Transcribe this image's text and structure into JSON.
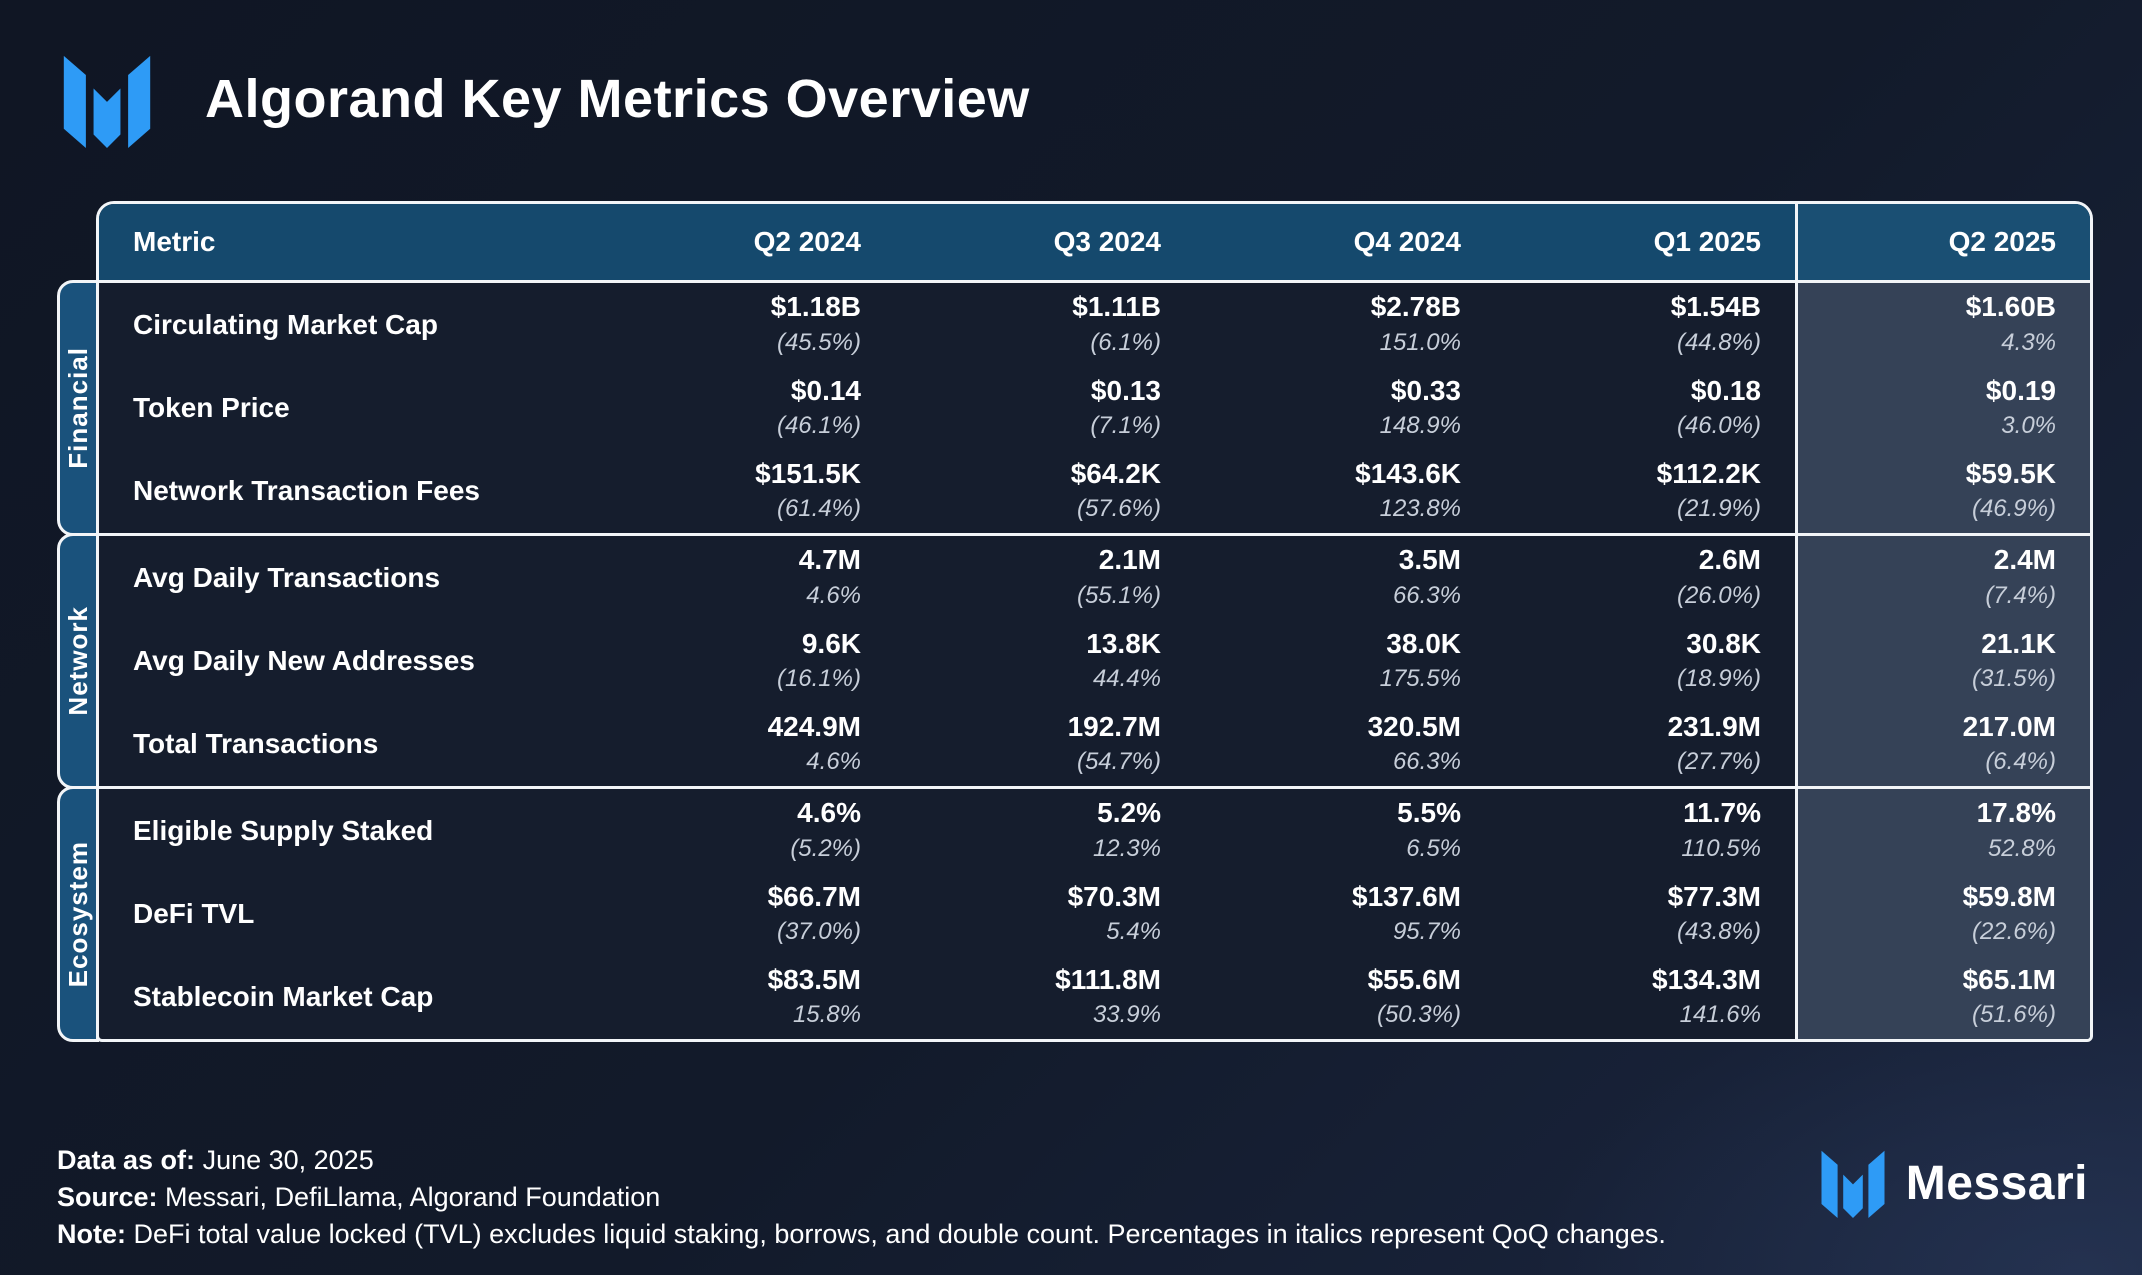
{
  "title": "Algorand Key Metrics Overview",
  "brand": {
    "name": "Messari",
    "wordmark": "Messari",
    "logo_icon": "messari-m-mark",
    "logo_color": "#2e9bf6"
  },
  "colors": {
    "background": "#121a2a",
    "header_blue": "#15496d",
    "section_label_blue": "#1a527c",
    "highlight_column_bg": "#354257",
    "body_bg": "#151d2d",
    "border_white": "#f2f5f8",
    "change_text": "#c7ced9"
  },
  "table": {
    "columns": [
      "Metric",
      "Q2 2024",
      "Q3 2024",
      "Q4 2024",
      "Q1 2025",
      "Q2 2025"
    ],
    "highlighted_column": "Q2 2025",
    "sections": [
      {
        "label": "Financial",
        "rows": [
          {
            "metric": "Circulating Market Cap",
            "values": [
              "$1.18B",
              "$1.11B",
              "$2.78B",
              "$1.54B",
              "$1.60B"
            ],
            "changes": [
              "(45.5%)",
              "(6.1%)",
              "151.0%",
              "(44.8%)",
              "4.3%"
            ]
          },
          {
            "metric": "Token Price",
            "values": [
              "$0.14",
              "$0.13",
              "$0.33",
              "$0.18",
              "$0.19"
            ],
            "changes": [
              "(46.1%)",
              "(7.1%)",
              "148.9%",
              "(46.0%)",
              "3.0%"
            ]
          },
          {
            "metric": "Network Transaction Fees",
            "values": [
              "$151.5K",
              "$64.2K",
              "$143.6K",
              "$112.2K",
              "$59.5K"
            ],
            "changes": [
              "(61.4%)",
              "(57.6%)",
              "123.8%",
              "(21.9%)",
              "(46.9%)"
            ]
          }
        ]
      },
      {
        "label": "Network",
        "rows": [
          {
            "metric": "Avg Daily Transactions",
            "values": [
              "4.7M",
              "2.1M",
              "3.5M",
              "2.6M",
              "2.4M"
            ],
            "changes": [
              "4.6%",
              "(55.1%)",
              "66.3%",
              "(26.0%)",
              "(7.4%)"
            ]
          },
          {
            "metric": "Avg Daily New Addresses",
            "values": [
              "9.6K",
              "13.8K",
              "38.0K",
              "30.8K",
              "21.1K"
            ],
            "changes": [
              "(16.1%)",
              "44.4%",
              "175.5%",
              "(18.9%)",
              "(31.5%)"
            ]
          },
          {
            "metric": "Total Transactions",
            "values": [
              "424.9M",
              "192.7M",
              "320.5M",
              "231.9M",
              "217.0M"
            ],
            "changes": [
              "4.6%",
              "(54.7%)",
              "66.3%",
              "(27.7%)",
              "(6.4%)"
            ]
          }
        ]
      },
      {
        "label": "Ecosystem",
        "rows": [
          {
            "metric": "Eligible Supply Staked",
            "values": [
              "4.6%",
              "5.2%",
              "5.5%",
              "11.7%",
              "17.8%"
            ],
            "changes": [
              "(5.2%)",
              "12.3%",
              "6.5%",
              "110.5%",
              "52.8%"
            ]
          },
          {
            "metric": "DeFi TVL",
            "values": [
              "$66.7M",
              "$70.3M",
              "$137.6M",
              "$77.3M",
              "$59.8M"
            ],
            "changes": [
              "(37.0%)",
              "5.4%",
              "95.7%",
              "(43.8%)",
              "(22.6%)"
            ]
          },
          {
            "metric": "Stablecoin Market Cap",
            "values": [
              "$83.5M",
              "$111.8M",
              "$55.6M",
              "$134.3M",
              "$65.1M"
            ],
            "changes": [
              "15.8%",
              "33.9%",
              "(50.3%)",
              "141.6%",
              "(51.6%)"
            ]
          }
        ]
      }
    ]
  },
  "footer": {
    "data_as_of_label": "Data as of:",
    "data_as_of": "June 30, 2025",
    "source_label": "Source:",
    "source": "Messari, DefiLlama, Algorand Foundation",
    "note_label": "Note:",
    "note": "DeFi total value locked (TVL) excludes liquid staking, borrows, and double count. Percentages in italics represent QoQ changes."
  },
  "chart_data": {
    "type": "table",
    "title": "Algorand Key Metrics Overview",
    "columns": [
      "Metric",
      "Q2 2024",
      "Q3 2024",
      "Q4 2024",
      "Q1 2025",
      "Q2 2025"
    ],
    "row_groups": [
      "Financial",
      "Network",
      "Ecosystem"
    ],
    "rows": [
      {
        "group": "Financial",
        "metric": "Circulating Market Cap",
        "values": [
          "$1.18B",
          "$1.11B",
          "$2.78B",
          "$1.54B",
          "$1.60B"
        ],
        "qoq_changes": [
          "-45.5%",
          "-6.1%",
          "+151.0%",
          "-44.8%",
          "+4.3%"
        ]
      },
      {
        "group": "Financial",
        "metric": "Token Price",
        "values": [
          "$0.14",
          "$0.13",
          "$0.33",
          "$0.18",
          "$0.19"
        ],
        "qoq_changes": [
          "-46.1%",
          "-7.1%",
          "+148.9%",
          "-46.0%",
          "+3.0%"
        ]
      },
      {
        "group": "Financial",
        "metric": "Network Transaction Fees",
        "values": [
          "$151.5K",
          "$64.2K",
          "$143.6K",
          "$112.2K",
          "$59.5K"
        ],
        "qoq_changes": [
          "-61.4%",
          "-57.6%",
          "+123.8%",
          "-21.9%",
          "-46.9%"
        ]
      },
      {
        "group": "Network",
        "metric": "Avg Daily Transactions",
        "values": [
          "4.7M",
          "2.1M",
          "3.5M",
          "2.6M",
          "2.4M"
        ],
        "qoq_changes": [
          "+4.6%",
          "-55.1%",
          "+66.3%",
          "-26.0%",
          "-7.4%"
        ]
      },
      {
        "group": "Network",
        "metric": "Avg Daily New Addresses",
        "values": [
          "9.6K",
          "13.8K",
          "38.0K",
          "30.8K",
          "21.1K"
        ],
        "qoq_changes": [
          "-16.1%",
          "+44.4%",
          "+175.5%",
          "-18.9%",
          "-31.5%"
        ]
      },
      {
        "group": "Network",
        "metric": "Total Transactions",
        "values": [
          "424.9M",
          "192.7M",
          "320.5M",
          "231.9M",
          "217.0M"
        ],
        "qoq_changes": [
          "+4.6%",
          "-54.7%",
          "+66.3%",
          "-27.7%",
          "-6.4%"
        ]
      },
      {
        "group": "Ecosystem",
        "metric": "Eligible Supply Staked",
        "values": [
          "4.6%",
          "5.2%",
          "5.5%",
          "11.7%",
          "17.8%"
        ],
        "qoq_changes": [
          "-5.2%",
          "+12.3%",
          "+6.5%",
          "+110.5%",
          "+52.8%"
        ]
      },
      {
        "group": "Ecosystem",
        "metric": "DeFi TVL",
        "values": [
          "$66.7M",
          "$70.3M",
          "$137.6M",
          "$77.3M",
          "$59.8M"
        ],
        "qoq_changes": [
          "-37.0%",
          "+5.4%",
          "+95.7%",
          "-43.8%",
          "-22.6%"
        ]
      },
      {
        "group": "Ecosystem",
        "metric": "Stablecoin Market Cap",
        "values": [
          "$83.5M",
          "$111.8M",
          "$55.6M",
          "$134.3M",
          "$65.1M"
        ],
        "qoq_changes": [
          "+15.8%",
          "+33.9%",
          "-50.3%",
          "+141.6%",
          "-51.6%"
        ]
      }
    ],
    "notes": "Percentages in italics are QoQ changes; values in parentheses are negative. Q2 2025 column highlighted."
  }
}
